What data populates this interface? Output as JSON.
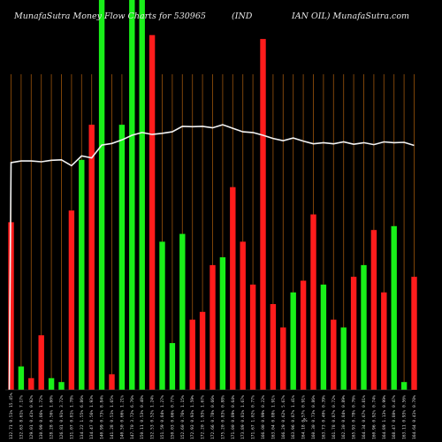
{
  "header": {
    "left": "MunafaSutra  Money Flow  Charts for 530965",
    "middle": "(IND",
    "right": "IAN   OIL) MunafaSutra.com"
  },
  "axis": {
    "x_title": "%"
  },
  "chart_data": {
    "type": "bar",
    "title": "",
    "colors": {
      "up": "#19f019",
      "down": "#ff1c1c",
      "line": "#f2f2f2",
      "grid": "#8a4b0a",
      "background": "#000000"
    },
    "ylim": [
      0,
      100
    ],
    "categories": [
      "132.71 0.51% 15.45%",
      "132.63 8.61% 7.17%",
      "129.01 0.41% 0.92%",
      "130.99 0.86% 1.72%",
      "128.28 0.56% 1.60%",
      "126.81 0.91% 3.72%",
      "131.07 0.81% 1.78%",
      "134.22 1.55% 6.86%",
      "134.47 0.56% 1.93%",
      "140.99 0.73% 8.84%",
      "141.28 0.51% 1.65%",
      "140.50 0.66% 1.21%",
      "147.70 3.72% 6.76%",
      "150.11 0.53% 0.48%",
      "152.53 0.52% 1.24%",
      "151.59 0.84% 1.27%",
      "150.03 0.66% 0.77%",
      "152.60 0.76% 1.15%",
      "172.93 0.93% 1.59%",
      "172.20 1.93% 1.67%",
      "172.66 0.78% 0.66%",
      "175.20 0.83% 0.88%",
      "171.00 0.89% 0.64%",
      "173.89 0.81% 1.67%",
      "171.67 1.02% 0.77%",
      "166.00 0.99% 0.22%",
      "163.04 0.88% 1.91%",
      "166.29 0.62% 5.67%",
      "163.96 0.87% 1.41%",
      "164.18 0.57% 0.91%",
      "160.30 0.73% 0.86%",
      "163.73 0.40% 0.39%",
      "161.78 0.87% 0.72%",
      "162.30 0.84% 0.89%",
      "165.93 0.78% 0.76%",
      "164.34 0.67% 0.81%",
      "160.96 0.92% 0.74%",
      "164.89 1.13% 0.99%",
      "168.47 0.80% 0.47%",
      "163.11 0.93% 0.56%",
      "164.64 0.41% 0.78%"
    ],
    "bar_values": [
      43,
      6,
      3,
      14,
      3,
      2,
      46,
      59,
      68,
      100,
      4,
      68,
      100,
      100,
      91,
      38,
      12,
      40,
      18,
      20,
      32,
      34,
      52,
      38,
      27,
      90,
      22,
      16,
      25,
      28,
      45,
      27,
      18,
      16,
      29,
      32,
      41,
      25,
      42,
      2,
      29
    ],
    "bar_directions": [
      "down",
      "up",
      "down",
      "down",
      "up",
      "up",
      "down",
      "up",
      "down",
      "up",
      "down",
      "up",
      "up",
      "up",
      "down",
      "up",
      "up",
      "up",
      "down",
      "down",
      "down",
      "up",
      "down",
      "down",
      "down",
      "down",
      "down",
      "down",
      "up",
      "down",
      "down",
      "up",
      "down",
      "up",
      "down",
      "up",
      "down",
      "down",
      "up",
      "up",
      "down"
    ],
    "line_values": [
      58.3,
      58.7,
      58.7,
      58.5,
      58.9,
      59,
      57.5,
      60,
      59.5,
      62.8,
      63.2,
      64.1,
      65.3,
      66,
      65.5,
      65.8,
      66.2,
      67.6,
      67.5,
      67.6,
      67.2,
      68,
      67.1,
      66.2,
      66,
      65.3,
      64.5,
      63.9,
      64.6,
      63.8,
      63.1,
      63.4,
      63.1,
      63.6,
      63,
      63.4,
      62.9,
      63.6,
      63.4,
      63.5,
      62.7
    ]
  }
}
